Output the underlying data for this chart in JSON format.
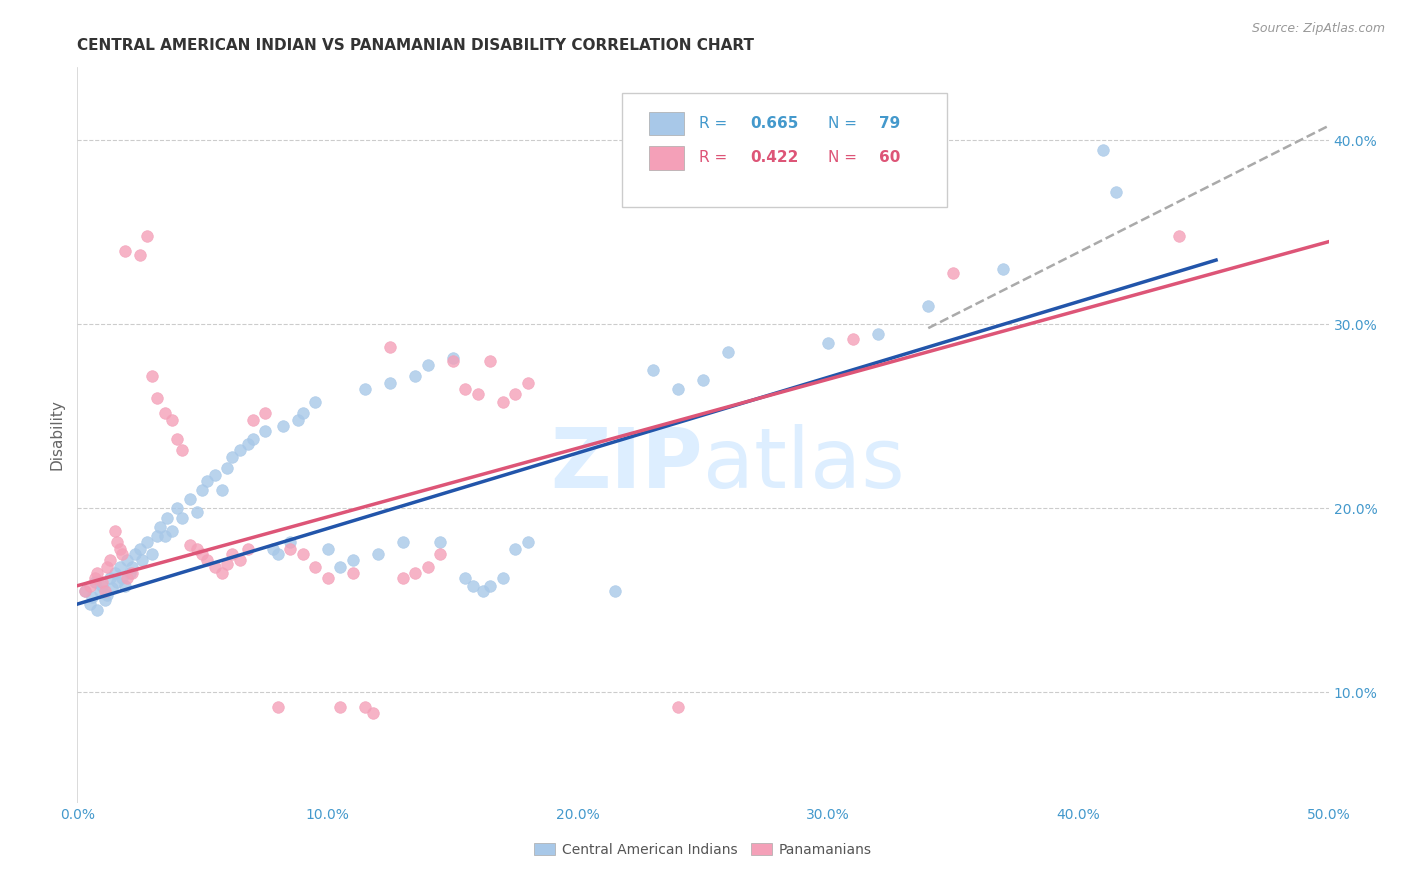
{
  "title": "CENTRAL AMERICAN INDIAN VS PANAMANIAN DISABILITY CORRELATION CHART",
  "source": "Source: ZipAtlas.com",
  "ylabel": "Disability",
  "xlim": [
    0.0,
    0.5
  ],
  "ylim": [
    0.04,
    0.44
  ],
  "xticks": [
    0.0,
    0.1,
    0.2,
    0.3,
    0.4,
    0.5
  ],
  "yticks": [
    0.1,
    0.2,
    0.3,
    0.4
  ],
  "xtick_labels": [
    "0.0%",
    "10.0%",
    "20.0%",
    "30.0%",
    "40.0%",
    "50.0%"
  ],
  "ytick_labels": [
    "10.0%",
    "20.0%",
    "30.0%",
    "40.0%"
  ],
  "blue_scatter": [
    [
      0.003,
      0.155
    ],
    [
      0.005,
      0.148
    ],
    [
      0.006,
      0.152
    ],
    [
      0.007,
      0.16
    ],
    [
      0.008,
      0.145
    ],
    [
      0.009,
      0.155
    ],
    [
      0.01,
      0.158
    ],
    [
      0.011,
      0.15
    ],
    [
      0.012,
      0.153
    ],
    [
      0.013,
      0.162
    ],
    [
      0.014,
      0.157
    ],
    [
      0.015,
      0.165
    ],
    [
      0.016,
      0.16
    ],
    [
      0.017,
      0.168
    ],
    [
      0.018,
      0.162
    ],
    [
      0.019,
      0.158
    ],
    [
      0.02,
      0.172
    ],
    [
      0.021,
      0.165
    ],
    [
      0.022,
      0.168
    ],
    [
      0.023,
      0.175
    ],
    [
      0.025,
      0.178
    ],
    [
      0.026,
      0.172
    ],
    [
      0.028,
      0.182
    ],
    [
      0.03,
      0.175
    ],
    [
      0.032,
      0.185
    ],
    [
      0.033,
      0.19
    ],
    [
      0.035,
      0.185
    ],
    [
      0.036,
      0.195
    ],
    [
      0.038,
      0.188
    ],
    [
      0.04,
      0.2
    ],
    [
      0.042,
      0.195
    ],
    [
      0.045,
      0.205
    ],
    [
      0.048,
      0.198
    ],
    [
      0.05,
      0.21
    ],
    [
      0.052,
      0.215
    ],
    [
      0.055,
      0.218
    ],
    [
      0.058,
      0.21
    ],
    [
      0.06,
      0.222
    ],
    [
      0.062,
      0.228
    ],
    [
      0.065,
      0.232
    ],
    [
      0.068,
      0.235
    ],
    [
      0.07,
      0.238
    ],
    [
      0.075,
      0.242
    ],
    [
      0.078,
      0.178
    ],
    [
      0.08,
      0.175
    ],
    [
      0.082,
      0.245
    ],
    [
      0.085,
      0.182
    ],
    [
      0.088,
      0.248
    ],
    [
      0.09,
      0.252
    ],
    [
      0.095,
      0.258
    ],
    [
      0.1,
      0.178
    ],
    [
      0.105,
      0.168
    ],
    [
      0.11,
      0.172
    ],
    [
      0.115,
      0.265
    ],
    [
      0.12,
      0.175
    ],
    [
      0.125,
      0.268
    ],
    [
      0.13,
      0.182
    ],
    [
      0.135,
      0.272
    ],
    [
      0.14,
      0.278
    ],
    [
      0.145,
      0.182
    ],
    [
      0.15,
      0.282
    ],
    [
      0.155,
      0.162
    ],
    [
      0.158,
      0.158
    ],
    [
      0.162,
      0.155
    ],
    [
      0.165,
      0.158
    ],
    [
      0.17,
      0.162
    ],
    [
      0.175,
      0.178
    ],
    [
      0.18,
      0.182
    ],
    [
      0.215,
      0.155
    ],
    [
      0.23,
      0.275
    ],
    [
      0.24,
      0.265
    ],
    [
      0.25,
      0.27
    ],
    [
      0.26,
      0.285
    ],
    [
      0.3,
      0.29
    ],
    [
      0.32,
      0.295
    ],
    [
      0.34,
      0.31
    ],
    [
      0.37,
      0.33
    ],
    [
      0.41,
      0.395
    ],
    [
      0.415,
      0.372
    ]
  ],
  "pink_scatter": [
    [
      0.003,
      0.155
    ],
    [
      0.005,
      0.158
    ],
    [
      0.007,
      0.162
    ],
    [
      0.008,
      0.165
    ],
    [
      0.01,
      0.16
    ],
    [
      0.011,
      0.155
    ],
    [
      0.012,
      0.168
    ],
    [
      0.013,
      0.172
    ],
    [
      0.015,
      0.188
    ],
    [
      0.016,
      0.182
    ],
    [
      0.017,
      0.178
    ],
    [
      0.018,
      0.175
    ],
    [
      0.019,
      0.34
    ],
    [
      0.02,
      0.162
    ],
    [
      0.022,
      0.165
    ],
    [
      0.025,
      0.338
    ],
    [
      0.028,
      0.348
    ],
    [
      0.03,
      0.272
    ],
    [
      0.032,
      0.26
    ],
    [
      0.035,
      0.252
    ],
    [
      0.038,
      0.248
    ],
    [
      0.04,
      0.238
    ],
    [
      0.042,
      0.232
    ],
    [
      0.045,
      0.18
    ],
    [
      0.048,
      0.178
    ],
    [
      0.05,
      0.175
    ],
    [
      0.052,
      0.172
    ],
    [
      0.055,
      0.168
    ],
    [
      0.058,
      0.165
    ],
    [
      0.06,
      0.17
    ],
    [
      0.062,
      0.175
    ],
    [
      0.065,
      0.172
    ],
    [
      0.068,
      0.178
    ],
    [
      0.07,
      0.248
    ],
    [
      0.075,
      0.252
    ],
    [
      0.08,
      0.092
    ],
    [
      0.085,
      0.178
    ],
    [
      0.09,
      0.175
    ],
    [
      0.095,
      0.168
    ],
    [
      0.1,
      0.162
    ],
    [
      0.105,
      0.092
    ],
    [
      0.11,
      0.165
    ],
    [
      0.115,
      0.092
    ],
    [
      0.118,
      0.089
    ],
    [
      0.125,
      0.288
    ],
    [
      0.13,
      0.162
    ],
    [
      0.135,
      0.165
    ],
    [
      0.14,
      0.168
    ],
    [
      0.145,
      0.175
    ],
    [
      0.15,
      0.28
    ],
    [
      0.155,
      0.265
    ],
    [
      0.16,
      0.262
    ],
    [
      0.165,
      0.28
    ],
    [
      0.17,
      0.258
    ],
    [
      0.175,
      0.262
    ],
    [
      0.18,
      0.268
    ],
    [
      0.24,
      0.092
    ],
    [
      0.31,
      0.292
    ],
    [
      0.35,
      0.328
    ],
    [
      0.44,
      0.348
    ]
  ],
  "blue_line_x": [
    0.0,
    0.455
  ],
  "blue_line_y": [
    0.148,
    0.335
  ],
  "pink_line_x": [
    0.0,
    0.5
  ],
  "pink_line_y": [
    0.158,
    0.345
  ],
  "dashed_line_x": [
    0.34,
    0.5
  ],
  "dashed_line_y": [
    0.298,
    0.408
  ],
  "scatter_size": 70,
  "blue_color": "#a8c8e8",
  "pink_color": "#f4a0b8",
  "blue_line_color": "#2255aa",
  "pink_line_color": "#dd5577",
  "dashed_color": "#aaaaaa",
  "grid_color": "#cccccc",
  "title_color": "#333333",
  "tick_color": "#4499cc",
  "legend_text_color_blue": "#4499cc",
  "legend_text_color_pink": "#dd5577",
  "watermark_color": "#ddeeff",
  "background_color": "#ffffff"
}
